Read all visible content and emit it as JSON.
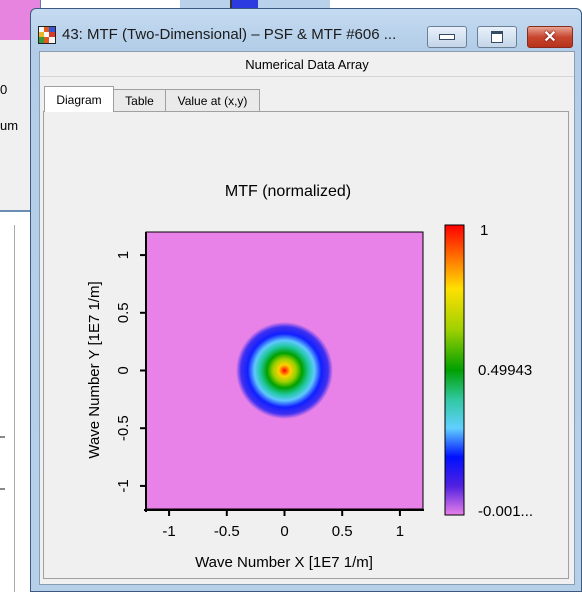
{
  "background": {
    "left_fragment_1": "0",
    "left_fragment_2": "um"
  },
  "window": {
    "title": "43: MTF (Two-Dimensional) – PSF & MTF #606 ...",
    "section_header": "Numerical Data Array",
    "tabs": [
      {
        "label": "Diagram",
        "active": true
      },
      {
        "label": "Table",
        "active": false
      },
      {
        "label": "Value at (x,y)",
        "active": false
      }
    ]
  },
  "chart_data": {
    "type": "heatmap",
    "title": "MTF (normalized)",
    "xlabel": "Wave Number X [1E7 1/m]",
    "ylabel": "Wave Number Y [1E7 1/m]",
    "xlim": [
      -1.2,
      1.2
    ],
    "ylim": [
      -1.2,
      1.2
    ],
    "xticks": [
      "-1",
      "-0.5",
      "0",
      "0.5",
      "1"
    ],
    "yticks": [
      "-1",
      "-0.5",
      "0",
      "0.5",
      "1"
    ],
    "xtick_values": [
      -1,
      -0.5,
      0,
      0.5,
      1
    ],
    "ytick_values": [
      -1,
      -0.5,
      0,
      0.5,
      1
    ],
    "colorbar": {
      "max_label": "1",
      "mid_label": "0.49943",
      "min_label": "-0.001...",
      "max_value": 1,
      "mid_value": 0.49943,
      "min_value": -0.001
    },
    "peak": {
      "x": 0,
      "y": 0,
      "value": 1
    },
    "cutoff_radius": 0.42,
    "background_value": 0,
    "colors": {
      "background": "#e881e8",
      "scale": [
        "#e881e8",
        "#0000ff",
        "#00b4ff",
        "#00a000",
        "#ffff00",
        "#ff0000"
      ]
    }
  }
}
